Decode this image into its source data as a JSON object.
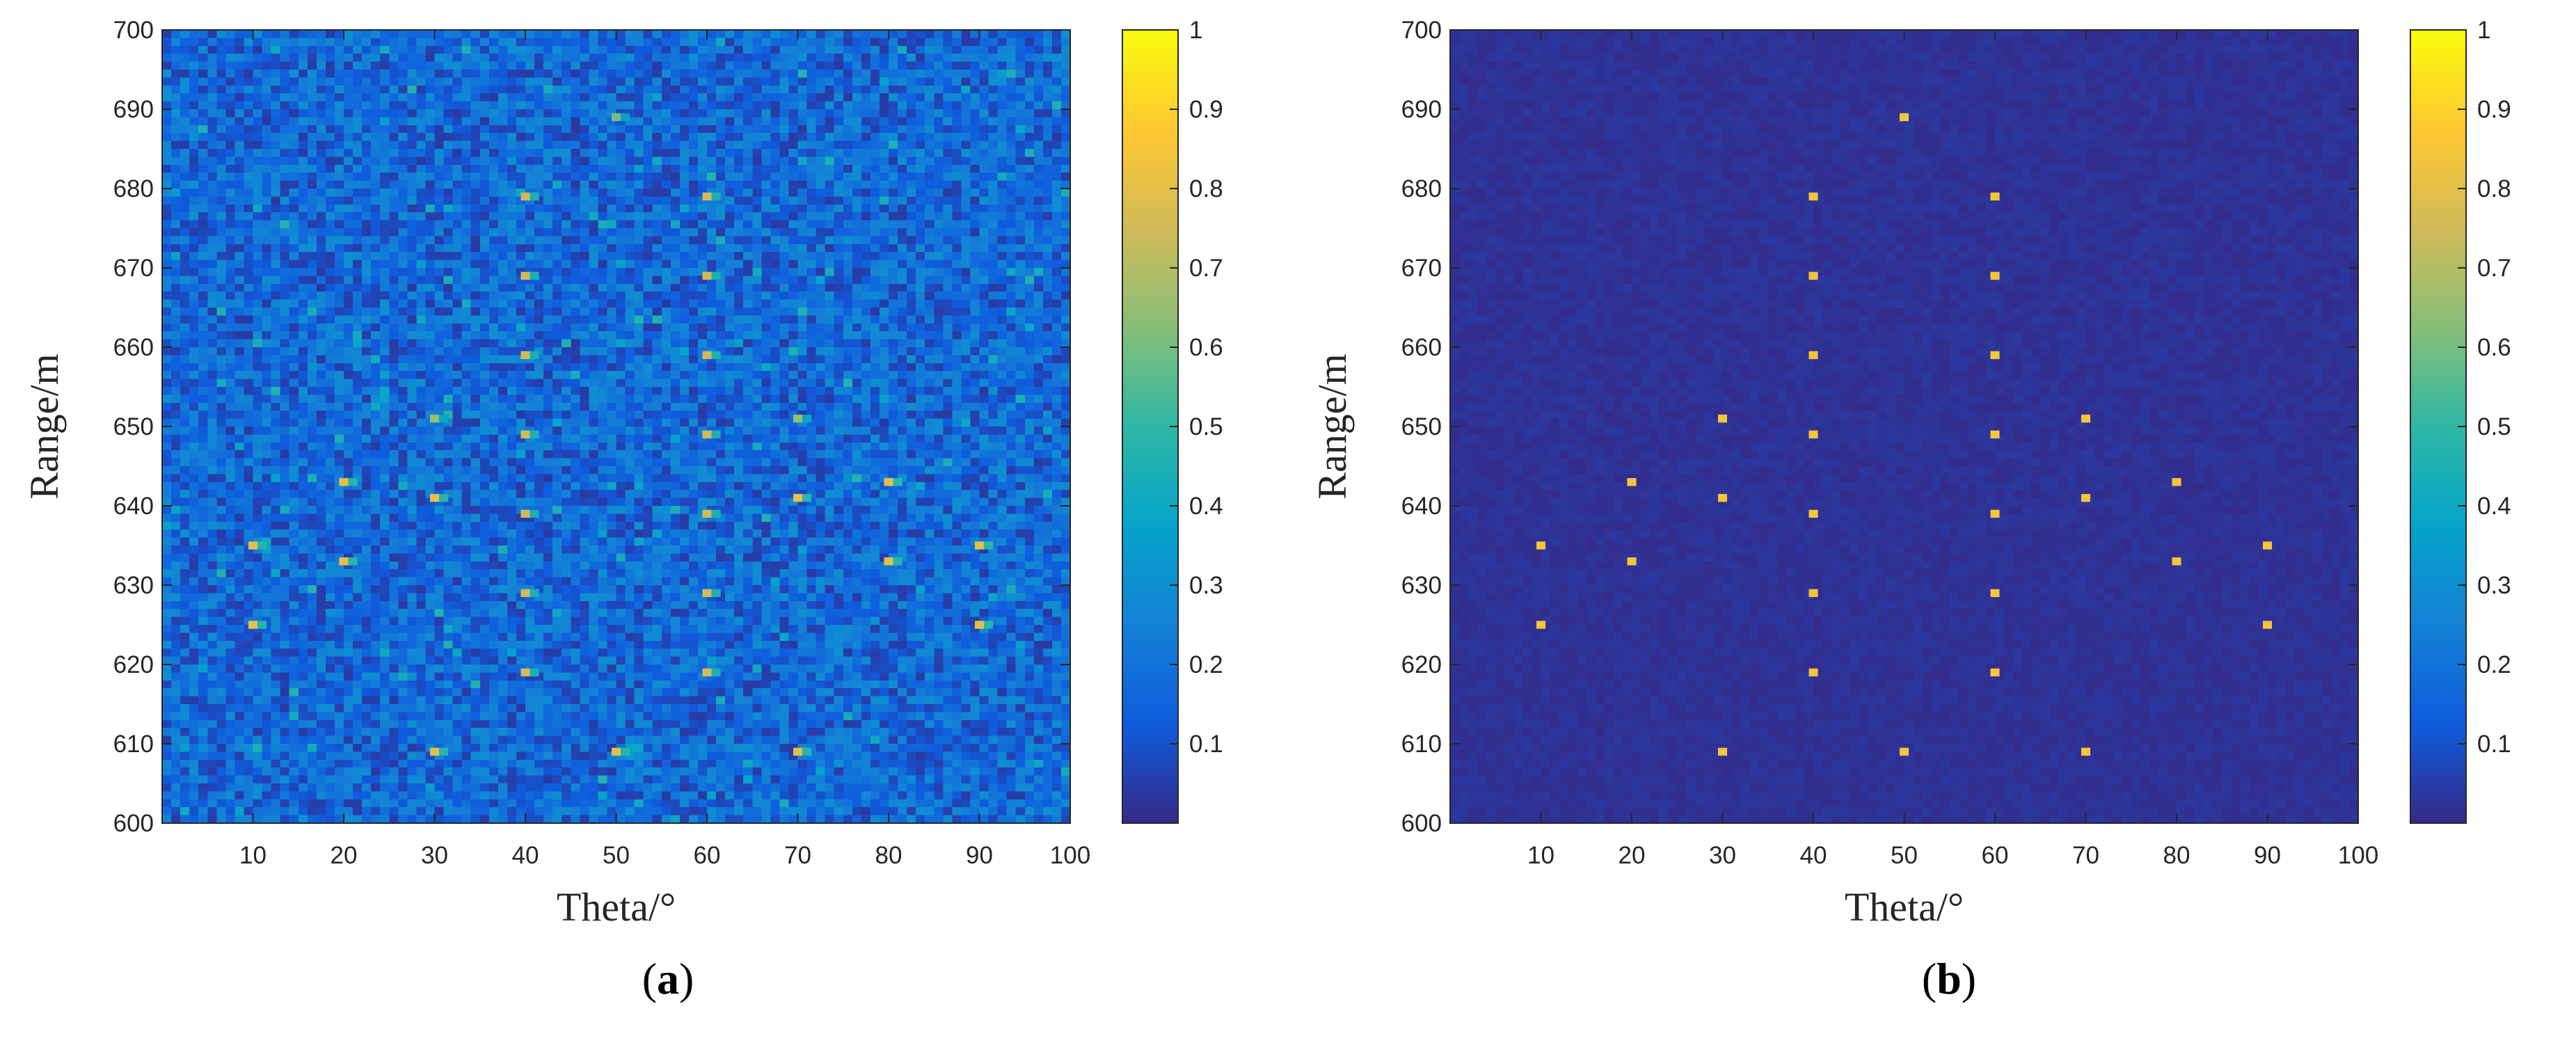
{
  "figure": {
    "panels": [
      {
        "caption_open": "(",
        "caption_letter": "a",
        "caption_close": ")"
      },
      {
        "caption_open": "(",
        "caption_letter": "b",
        "caption_close": ")"
      }
    ]
  },
  "colormap": {
    "name": "parula",
    "stops": [
      "#352a87",
      "#0f5cdd",
      "#1481d6",
      "#06a4ca",
      "#2eb7a4",
      "#87bf77",
      "#d1bb59",
      "#fec832",
      "#f9fb0e"
    ]
  },
  "chart_data": [
    {
      "type": "heatmap",
      "title": "",
      "xlabel": "Theta/°",
      "ylabel": "Range/m",
      "xlim": [
        0,
        100
      ],
      "ylim": [
        600,
        700
      ],
      "xticks": [
        10,
        20,
        30,
        40,
        50,
        60,
        70,
        80,
        90,
        100
      ],
      "yticks": [
        600,
        610,
        620,
        630,
        640,
        650,
        660,
        670,
        680,
        690,
        700
      ],
      "colorbar": {
        "ticks": [
          "0.1",
          "0.2",
          "0.3",
          "0.4",
          "0.5",
          "0.6",
          "0.7",
          "0.8",
          "0.9",
          "1"
        ],
        "range": [
          0,
          1
        ]
      },
      "grid": false,
      "background": {
        "mean": 0.17,
        "spread": 0.13,
        "description": "noisy background level"
      },
      "targets": [
        {
          "theta": 10,
          "range": 625,
          "value": 0.8
        },
        {
          "theta": 10,
          "range": 635,
          "value": 0.8
        },
        {
          "theta": 20,
          "range": 633,
          "value": 0.8
        },
        {
          "theta": 20,
          "range": 643,
          "value": 0.8
        },
        {
          "theta": 30,
          "range": 609,
          "value": 0.8
        },
        {
          "theta": 30,
          "range": 641,
          "value": 0.8
        },
        {
          "theta": 30,
          "range": 651,
          "value": 0.65
        },
        {
          "theta": 40,
          "range": 619,
          "value": 0.75
        },
        {
          "theta": 40,
          "range": 629,
          "value": 0.75
        },
        {
          "theta": 40,
          "range": 639,
          "value": 0.75
        },
        {
          "theta": 40,
          "range": 649,
          "value": 0.75
        },
        {
          "theta": 40,
          "range": 659,
          "value": 0.75
        },
        {
          "theta": 40,
          "range": 669,
          "value": 0.75
        },
        {
          "theta": 40,
          "range": 679,
          "value": 0.75
        },
        {
          "theta": 50,
          "range": 609,
          "value": 0.8
        },
        {
          "theta": 50,
          "range": 689,
          "value": 0.6
        },
        {
          "theta": 60,
          "range": 619,
          "value": 0.75
        },
        {
          "theta": 60,
          "range": 629,
          "value": 0.75
        },
        {
          "theta": 60,
          "range": 639,
          "value": 0.75
        },
        {
          "theta": 60,
          "range": 649,
          "value": 0.75
        },
        {
          "theta": 60,
          "range": 659,
          "value": 0.75
        },
        {
          "theta": 60,
          "range": 669,
          "value": 0.75
        },
        {
          "theta": 60,
          "range": 679,
          "value": 0.75
        },
        {
          "theta": 70,
          "range": 609,
          "value": 0.8
        },
        {
          "theta": 70,
          "range": 641,
          "value": 0.8
        },
        {
          "theta": 70,
          "range": 651,
          "value": 0.65
        },
        {
          "theta": 80,
          "range": 633,
          "value": 0.8
        },
        {
          "theta": 80,
          "range": 643,
          "value": 0.8
        },
        {
          "theta": 90,
          "range": 625,
          "value": 0.8
        },
        {
          "theta": 90,
          "range": 635,
          "value": 0.8
        }
      ]
    },
    {
      "type": "heatmap",
      "title": "",
      "xlabel": "Theta/°",
      "ylabel": "Range/m",
      "xlim": [
        0,
        100
      ],
      "ylim": [
        600,
        700
      ],
      "xticks": [
        10,
        20,
        30,
        40,
        50,
        60,
        70,
        80,
        90,
        100
      ],
      "yticks": [
        600,
        610,
        620,
        630,
        640,
        650,
        660,
        670,
        680,
        690,
        700
      ],
      "colorbar": {
        "ticks": [
          "0.1",
          "0.2",
          "0.3",
          "0.4",
          "0.5",
          "0.6",
          "0.7",
          "0.8",
          "0.9",
          "1"
        ],
        "range": [
          0,
          1
        ]
      },
      "grid": false,
      "background": {
        "mean": 0.02,
        "spread": 0.015,
        "description": "near-zero background"
      },
      "targets": [
        {
          "theta": 10,
          "range": 625,
          "value": 0.85
        },
        {
          "theta": 10,
          "range": 635,
          "value": 0.85
        },
        {
          "theta": 20,
          "range": 633,
          "value": 0.85
        },
        {
          "theta": 20,
          "range": 643,
          "value": 0.85
        },
        {
          "theta": 30,
          "range": 609,
          "value": 0.85
        },
        {
          "theta": 30,
          "range": 641,
          "value": 0.85
        },
        {
          "theta": 30,
          "range": 651,
          "value": 0.85
        },
        {
          "theta": 40,
          "range": 619,
          "value": 0.85
        },
        {
          "theta": 40,
          "range": 629,
          "value": 0.85
        },
        {
          "theta": 40,
          "range": 639,
          "value": 0.85
        },
        {
          "theta": 40,
          "range": 649,
          "value": 0.85
        },
        {
          "theta": 40,
          "range": 659,
          "value": 0.85
        },
        {
          "theta": 40,
          "range": 669,
          "value": 0.85
        },
        {
          "theta": 40,
          "range": 679,
          "value": 0.85
        },
        {
          "theta": 50,
          "range": 609,
          "value": 0.85
        },
        {
          "theta": 50,
          "range": 689,
          "value": 0.85
        },
        {
          "theta": 60,
          "range": 619,
          "value": 0.85
        },
        {
          "theta": 60,
          "range": 629,
          "value": 0.85
        },
        {
          "theta": 60,
          "range": 639,
          "value": 0.85
        },
        {
          "theta": 60,
          "range": 649,
          "value": 0.85
        },
        {
          "theta": 60,
          "range": 659,
          "value": 0.85
        },
        {
          "theta": 60,
          "range": 669,
          "value": 0.85
        },
        {
          "theta": 60,
          "range": 679,
          "value": 0.85
        },
        {
          "theta": 70,
          "range": 609,
          "value": 0.85
        },
        {
          "theta": 70,
          "range": 641,
          "value": 0.85
        },
        {
          "theta": 70,
          "range": 651,
          "value": 0.85
        },
        {
          "theta": 80,
          "range": 633,
          "value": 0.85
        },
        {
          "theta": 80,
          "range": 643,
          "value": 0.85
        },
        {
          "theta": 90,
          "range": 625,
          "value": 0.85
        },
        {
          "theta": 90,
          "range": 635,
          "value": 0.85
        }
      ]
    }
  ]
}
